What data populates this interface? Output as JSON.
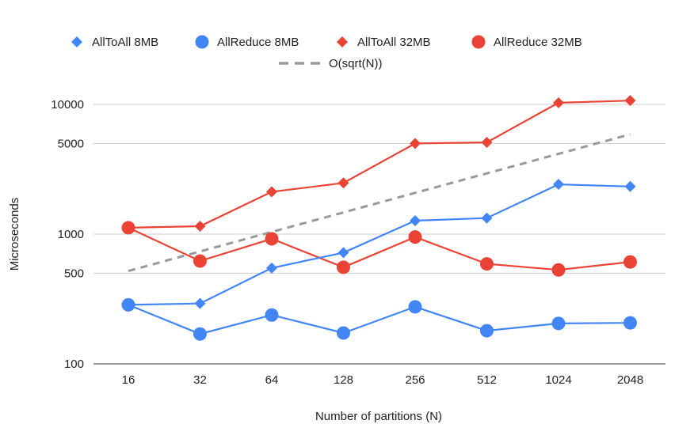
{
  "chart_data": {
    "type": "line",
    "title": "",
    "xlabel": "Number of partitions (N)",
    "ylabel": "Microseconds",
    "y_scale": "log",
    "ylim": [
      100,
      12000
    ],
    "categories": [
      "16",
      "32",
      "64",
      "128",
      "256",
      "512",
      "1024",
      "2048"
    ],
    "y_ticks": [
      {
        "value": 100,
        "label": "100"
      },
      {
        "value": 500,
        "label": "500"
      },
      {
        "value": 1000,
        "label": "1000"
      },
      {
        "value": 5000,
        "label": "5000"
      },
      {
        "value": 10000,
        "label": "10000"
      }
    ],
    "grid": true,
    "legend_position": "top",
    "series": [
      {
        "name": "AllToAll 8MB",
        "color": "#4285f4",
        "marker": "diamond",
        "style": "solid",
        "values": [
          285,
          292,
          548,
          720,
          1270,
          1330,
          2420,
          2330
        ]
      },
      {
        "name": "AllReduce 8MB",
        "color": "#4285f4",
        "marker": "circle",
        "style": "solid",
        "values": [
          285,
          170,
          238,
          173,
          275,
          180,
          205,
          207
        ]
      },
      {
        "name": "AllToAll 32MB",
        "color": "#ea4335",
        "marker": "diamond",
        "style": "solid",
        "values": [
          1120,
          1150,
          2120,
          2480,
          5000,
          5100,
          10300,
          10700
        ]
      },
      {
        "name": "AllReduce 32MB",
        "color": "#ea4335",
        "marker": "circle",
        "style": "solid",
        "values": [
          1120,
          620,
          920,
          555,
          950,
          590,
          530,
          610
        ]
      },
      {
        "name": "O(sqrt(N))",
        "color": "#999999",
        "marker": "none",
        "style": "dashed",
        "values": [
          520,
          735,
          1040,
          1470,
          2080,
          2940,
          4160,
          5880
        ]
      }
    ]
  }
}
